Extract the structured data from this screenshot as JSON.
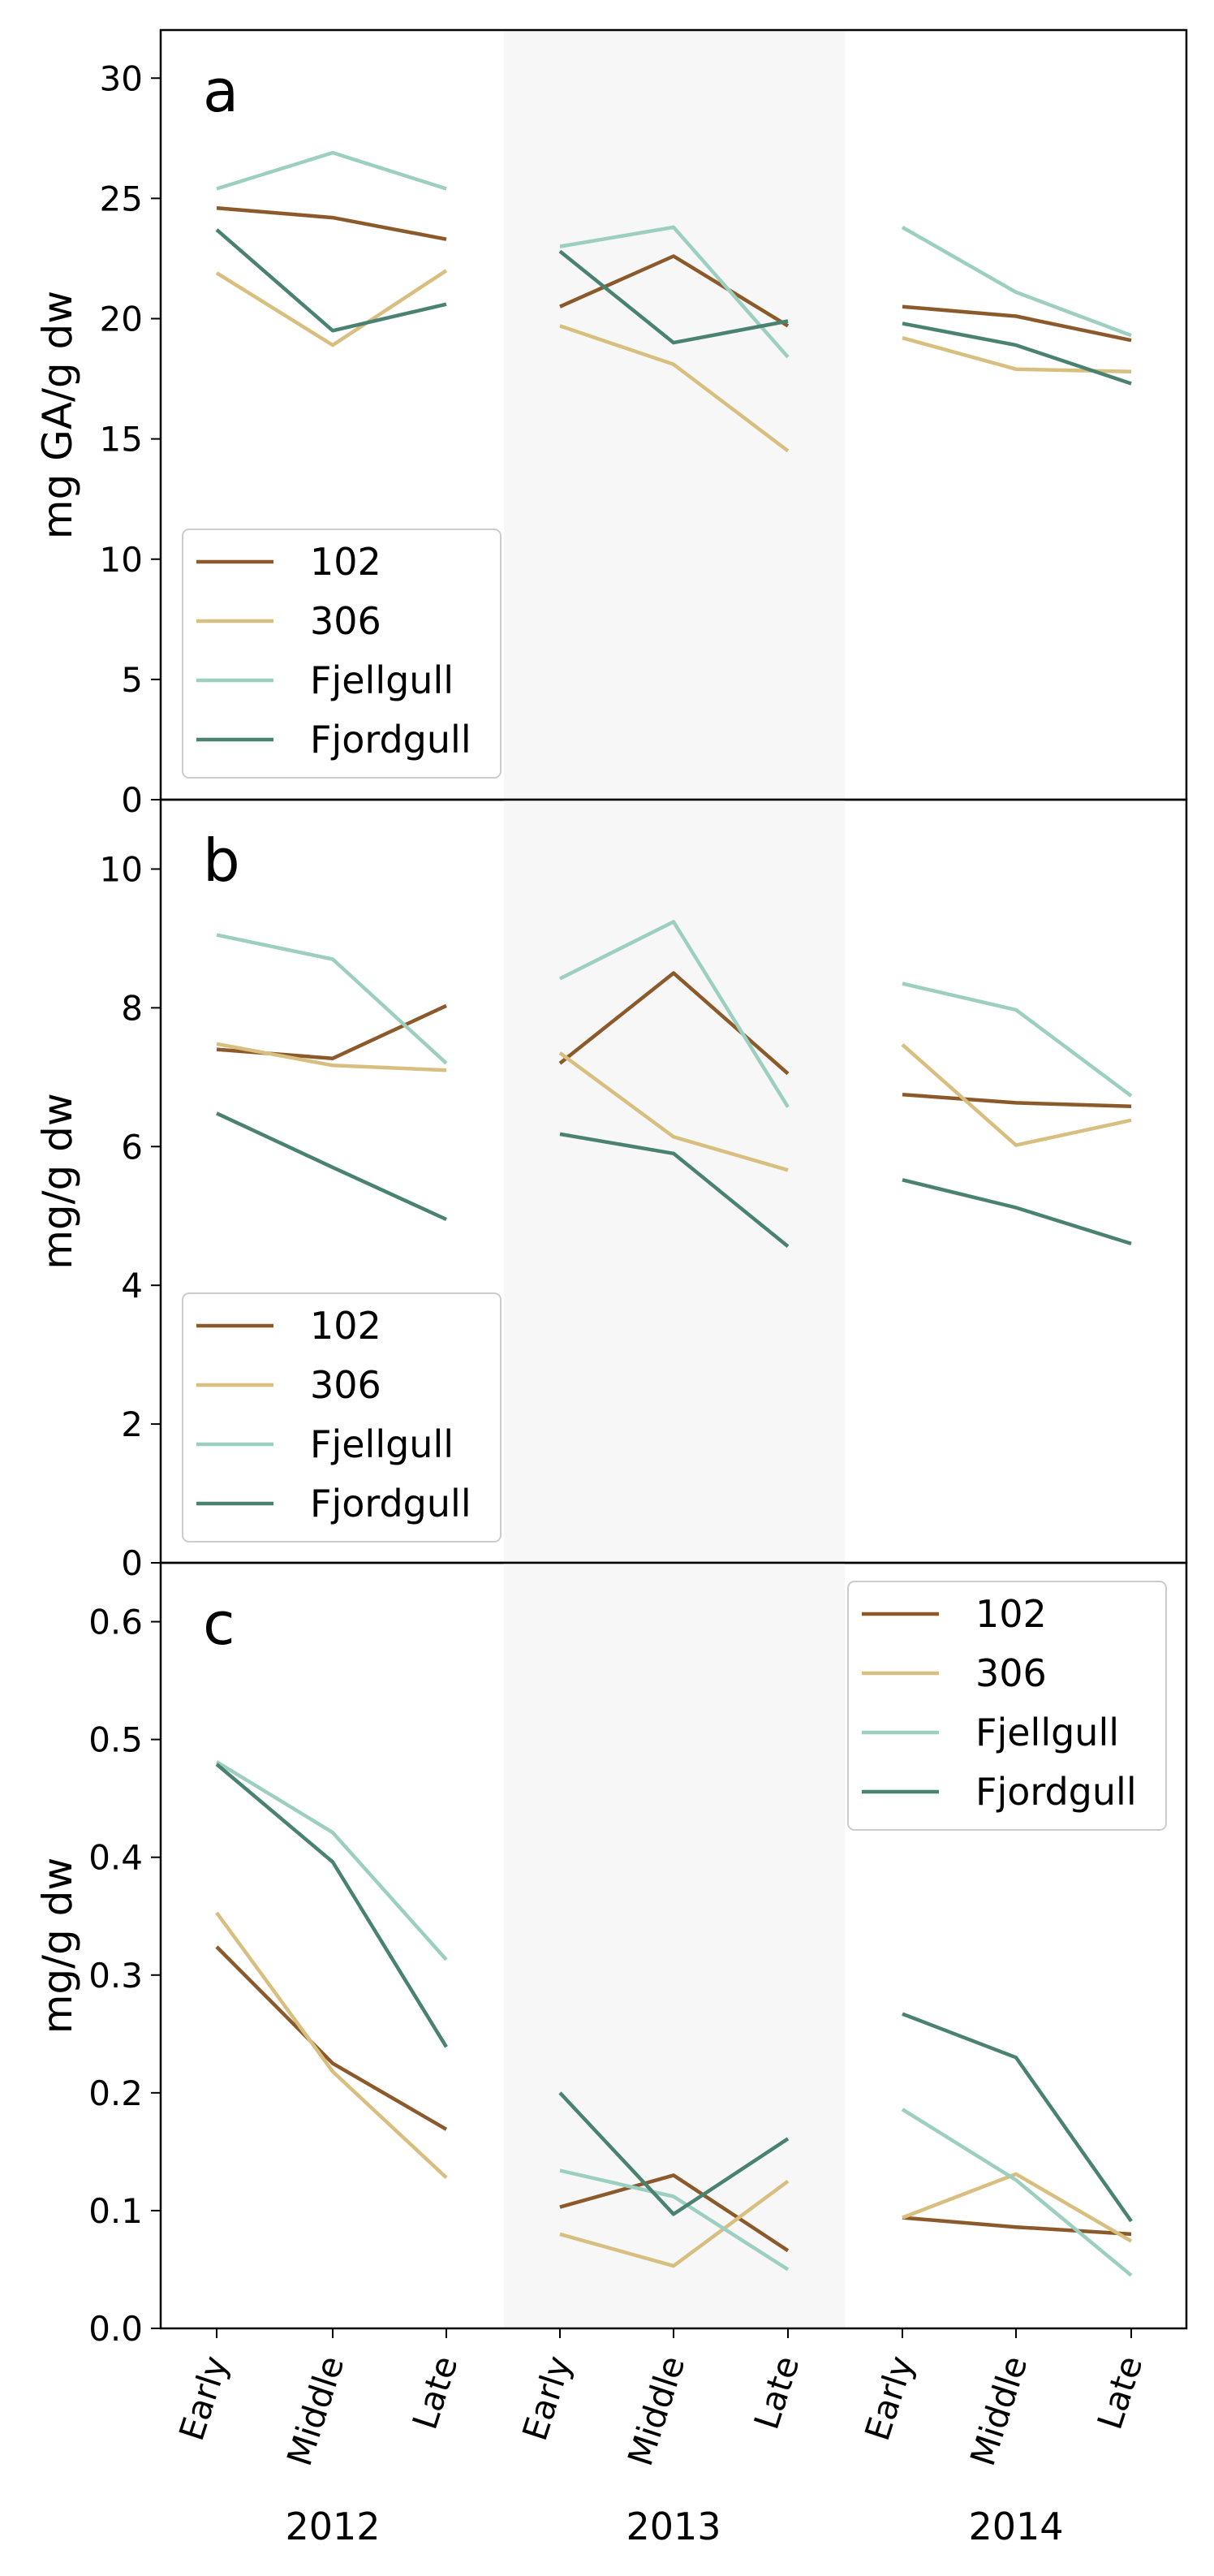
{
  "chart_data": [
    {
      "type": "line",
      "panel_label": "a",
      "ylabel": "mg GA/g dw",
      "ylim": [
        0,
        32
      ],
      "yticks": [
        "0",
        "5",
        "10",
        "15",
        "20",
        "25",
        "30"
      ],
      "categories": [
        "Early",
        "Middle",
        "Late",
        "Early",
        "Middle",
        "Late",
        "Early",
        "Middle",
        "Late"
      ],
      "years": [
        "2012",
        "2013",
        "2014"
      ],
      "shaded_year": "2013",
      "grid": false,
      "legend_position": "lower-left",
      "series": [
        {
          "name": "102",
          "color": "#8c5a2a",
          "segments": [
            [
              24.6,
              24.2,
              23.3
            ],
            [
              20.5,
              22.6,
              19.7
            ],
            [
              20.5,
              20.1,
              19.1
            ]
          ]
        },
        {
          "name": "306",
          "color": "#d8bf7f",
          "segments": [
            [
              21.9,
              18.9,
              22.0
            ],
            [
              19.7,
              18.1,
              14.5
            ],
            [
              19.2,
              17.9,
              17.8
            ]
          ]
        },
        {
          "name": "Fjellgull",
          "color": "#9ccfbf",
          "segments": [
            [
              25.4,
              26.9,
              25.4
            ],
            [
              23.0,
              23.8,
              18.4
            ],
            [
              23.8,
              21.1,
              19.3
            ]
          ]
        },
        {
          "name": "Fjordgull",
          "color": "#4a8272",
          "segments": [
            [
              23.7,
              19.5,
              20.6
            ],
            [
              22.8,
              19.0,
              19.9
            ],
            [
              19.8,
              18.9,
              17.3
            ]
          ]
        }
      ]
    },
    {
      "type": "line",
      "panel_label": "b",
      "ylabel": "mg/g dw",
      "ylim": [
        0,
        11
      ],
      "yticks": [
        "0",
        "2",
        "4",
        "6",
        "8",
        "10"
      ],
      "categories": [
        "Early",
        "Middle",
        "Late",
        "Early",
        "Middle",
        "Late",
        "Early",
        "Middle",
        "Late"
      ],
      "years": [
        "2012",
        "2013",
        "2014"
      ],
      "shaded_year": "2013",
      "grid": false,
      "legend_position": "lower-left",
      "series": [
        {
          "name": "102",
          "color": "#8c5a2a",
          "segments": [
            [
              7.4,
              7.27,
              8.03
            ],
            [
              7.2,
              8.5,
              7.05
            ],
            [
              6.75,
              6.63,
              6.58
            ]
          ]
        },
        {
          "name": "306",
          "color": "#d8bf7f",
          "segments": [
            [
              7.48,
              7.17,
              7.1
            ],
            [
              7.35,
              6.14,
              5.66
            ],
            [
              7.47,
              6.02,
              6.38
            ]
          ]
        },
        {
          "name": "Fjellgull",
          "color": "#9ccfbf",
          "segments": [
            [
              9.05,
              8.7,
              7.2
            ],
            [
              8.42,
              9.24,
              6.57
            ],
            [
              8.35,
              7.97,
              6.73
            ]
          ]
        },
        {
          "name": "Fjordgull",
          "color": "#4a8272",
          "segments": [
            [
              6.48,
              5.7,
              4.95
            ],
            [
              6.18,
              5.9,
              4.56
            ],
            [
              5.52,
              5.12,
              4.6
            ]
          ]
        }
      ]
    },
    {
      "type": "line",
      "panel_label": "c",
      "ylabel": "mg/g dw",
      "ylim": [
        0,
        0.65
      ],
      "yticks": [
        "0.0",
        "0.1",
        "0.2",
        "0.3",
        "0.4",
        "0.5",
        "0.6"
      ],
      "categories": [
        "Early",
        "Middle",
        "Late",
        "Early",
        "Middle",
        "Late",
        "Early",
        "Middle",
        "Late"
      ],
      "years": [
        "2012",
        "2013",
        "2014"
      ],
      "shaded_year": "2013",
      "grid": false,
      "legend_position": "upper-right",
      "series": [
        {
          "name": "102",
          "color": "#8c5a2a",
          "segments": [
            [
              0.324,
              0.225,
              0.169
            ],
            [
              0.103,
              0.13,
              0.066
            ],
            [
              0.094,
              0.086,
              0.08
            ]
          ]
        },
        {
          "name": "306",
          "color": "#d8bf7f",
          "segments": [
            [
              0.353,
              0.218,
              0.128
            ],
            [
              0.08,
              0.053,
              0.125
            ],
            [
              0.094,
              0.131,
              0.074
            ]
          ]
        },
        {
          "name": "Fjellgull",
          "color": "#9ccfbf",
          "segments": [
            [
              0.481,
              0.421,
              0.313
            ],
            [
              0.134,
              0.112,
              0.05
            ],
            [
              0.186,
              0.126,
              0.045
            ]
          ]
        },
        {
          "name": "Fjordgull",
          "color": "#4a8272",
          "segments": [
            [
              0.479,
              0.396,
              0.239
            ],
            [
              0.2,
              0.097,
              0.161
            ],
            [
              0.267,
              0.23,
              0.091
            ]
          ]
        }
      ]
    }
  ]
}
